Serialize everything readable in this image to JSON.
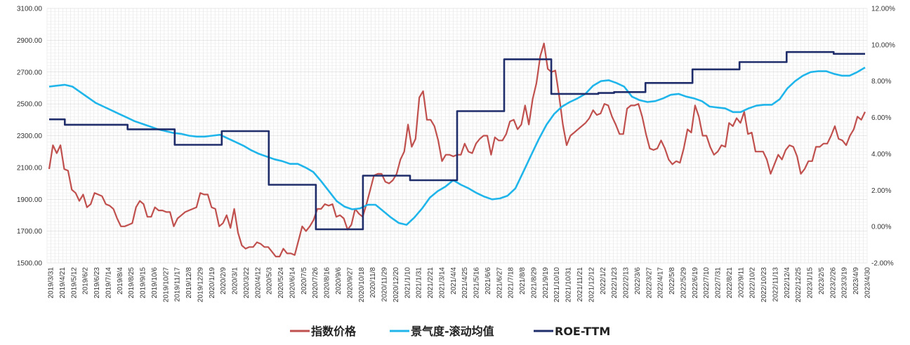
{
  "chart_data": {
    "type": "line",
    "title": "",
    "grid": true,
    "legend_position": "bottom-center",
    "y_left": {
      "ticks": [
        "3100.00",
        "2900.00",
        "2700.00",
        "2500.00",
        "2300.00",
        "2100.00",
        "1900.00",
        "1700.00",
        "1500.00"
      ],
      "range": [
        1500,
        3100
      ]
    },
    "y_right": {
      "ticks": [
        "12.00%",
        "10.00%",
        "8.00%",
        "6.00%",
        "4.00%",
        "2.00%",
        "0.00%",
        "-2.00%"
      ],
      "range": [
        -2,
        12
      ]
    },
    "x_ticks": [
      "2019/3/31",
      "2019/4/21",
      "2019/5/12",
      "2019/6/2",
      "2019/6/23",
      "2019/7/14",
      "2019/8/4",
      "2019/8/25",
      "2019/9/15",
      "2019/10/6",
      "2019/10/27",
      "2019/11/17",
      "2019/12/8",
      "2019/12/29",
      "2020/1/19",
      "2020/2/9",
      "2020/3/1",
      "2020/3/22",
      "2020/4/12",
      "2020/5/3",
      "2020/5/24",
      "2020/6/14",
      "2020/7/5",
      "2020/7/26",
      "2020/8/16",
      "2020/9/6",
      "2020/9/27",
      "2020/10/18",
      "2020/11/8",
      "2020/11/29",
      "2020/12/20",
      "2021/1/10",
      "2021/1/31",
      "2021/2/21",
      "2021/3/14",
      "2021/4/4",
      "2021/4/25",
      "2021/5/16",
      "2021/6/6",
      "2021/6/27",
      "2021/7/18",
      "2021/8/8",
      "2021/8/29",
      "2021/9/19",
      "2021/10/10",
      "2021/10/31",
      "2021/11/21",
      "2021/12/12",
      "2022/1/2",
      "2022/1/23",
      "2022/2/13",
      "2022/3/6",
      "2022/3/27",
      "2022/4/17",
      "2022/5/8",
      "2022/5/29",
      "2022/6/19",
      "2022/7/10",
      "2022/7/31",
      "2022/8/21",
      "2022/9/11",
      "2022/10/2",
      "2022/10/23",
      "2022/11/13",
      "2022/12/4",
      "2022/12/25",
      "2023/1/15",
      "2023/2/5",
      "2023/2/26",
      "2023/3/19",
      "2023/4/9",
      "2023/4/30"
    ],
    "series": [
      {
        "name": "指数价格",
        "axis": "left",
        "color": "#c0504d",
        "values": [
          2090,
          2240,
          2190,
          2240,
          2090,
          2080,
          1960,
          1940,
          1890,
          1930,
          1850,
          1870,
          1940,
          1930,
          1920,
          1870,
          1860,
          1840,
          1780,
          1730,
          1730,
          1740,
          1750,
          1850,
          1890,
          1870,
          1790,
          1790,
          1850,
          1830,
          1830,
          1820,
          1820,
          1730,
          1780,
          1800,
          1820,
          1830,
          1840,
          1850,
          1940,
          1930,
          1930,
          1850,
          1840,
          1730,
          1750,
          1800,
          1720,
          1840,
          1690,
          1610,
          1590,
          1600,
          1600,
          1630,
          1620,
          1600,
          1600,
          1570,
          1540,
          1540,
          1590,
          1560,
          1560,
          1550,
          1640,
          1730,
          1700,
          1730,
          1770,
          1840,
          1840,
          1870,
          1860,
          1870,
          1790,
          1800,
          1780,
          1710,
          1740,
          1840,
          1810,
          1790,
          1870,
          1960,
          2050,
          2060,
          2060,
          2010,
          2000,
          2020,
          2060,
          2150,
          2200,
          2370,
          2230,
          2280,
          2540,
          2580,
          2400,
          2400,
          2360,
          2270,
          2140,
          2180,
          2180,
          2170,
          2180,
          2180,
          2250,
          2200,
          2190,
          2250,
          2280,
          2300,
          2300,
          2180,
          2290,
          2270,
          2270,
          2310,
          2390,
          2400,
          2340,
          2370,
          2490,
          2370,
          2530,
          2630,
          2800,
          2880,
          2720,
          2700,
          2710,
          2550,
          2370,
          2240,
          2300,
          2320,
          2340,
          2360,
          2380,
          2410,
          2460,
          2430,
          2440,
          2500,
          2490,
          2420,
          2370,
          2310,
          2310,
          2470,
          2490,
          2490,
          2500,
          2420,
          2310,
          2220,
          2210,
          2220,
          2270,
          2220,
          2150,
          2120,
          2140,
          2130,
          2220,
          2340,
          2320,
          2490,
          2420,
          2300,
          2300,
          2230,
          2180,
          2200,
          2240,
          2230,
          2380,
          2360,
          2410,
          2380,
          2450,
          2310,
          2320,
          2200,
          2200,
          2200,
          2150,
          2060,
          2120,
          2180,
          2150,
          2210,
          2240,
          2230,
          2170,
          2060,
          2090,
          2140,
          2140,
          2230,
          2230,
          2250,
          2250,
          2300,
          2360,
          2280,
          2270,
          2240,
          2300,
          2340,
          2420,
          2400,
          2450
        ]
      },
      {
        "name": "景气度-滚动均值",
        "axis": "right",
        "color": "#1fb5ea",
        "values": [
          7.7,
          7.75,
          7.8,
          7.7,
          7.4,
          7.1,
          6.8,
          6.6,
          6.4,
          6.2,
          6.0,
          5.8,
          5.65,
          5.5,
          5.35,
          5.25,
          5.15,
          5.1,
          5.0,
          4.95,
          4.95,
          5.0,
          5.05,
          4.85,
          4.65,
          4.45,
          4.2,
          4.0,
          3.85,
          3.7,
          3.6,
          3.45,
          3.45,
          3.25,
          3.0,
          2.5,
          1.95,
          1.4,
          1.1,
          0.95,
          1.0,
          1.2,
          1.2,
          0.85,
          0.5,
          0.2,
          0.1,
          0.5,
          1.0,
          1.6,
          1.95,
          2.2,
          2.55,
          2.3,
          2.1,
          1.85,
          1.65,
          1.5,
          1.55,
          1.7,
          2.1,
          3.0,
          3.9,
          4.8,
          5.6,
          6.2,
          6.6,
          6.85,
          7.05,
          7.3,
          7.75,
          8.0,
          8.05,
          7.9,
          7.7,
          7.15,
          6.95,
          6.85,
          6.9,
          7.05,
          7.25,
          7.3,
          7.15,
          7.05,
          6.9,
          6.6,
          6.55,
          6.5,
          6.3,
          6.3,
          6.5,
          6.65,
          6.7,
          6.7,
          7.0,
          7.6,
          8.0,
          8.3,
          8.5,
          8.55,
          8.55,
          8.4,
          8.3,
          8.3,
          8.5,
          8.75
        ]
      },
      {
        "name": "ROE-TTM",
        "axis": "right",
        "color": "#1f2d6b",
        "values": [
          5.9,
          5.6,
          5.6,
          5.6,
          5.6,
          5.35,
          5.35,
          5.35,
          4.5,
          4.5,
          4.5,
          5.25,
          5.25,
          5.25,
          2.3,
          2.3,
          2.3,
          -0.15,
          -0.15,
          -0.15,
          2.8,
          2.8,
          2.8,
          2.55,
          2.55,
          2.55,
          6.35,
          6.35,
          6.35,
          9.2,
          9.2,
          9.2,
          7.3,
          7.3,
          7.3,
          7.35,
          7.4,
          7.4,
          7.9,
          7.9,
          7.9,
          8.65,
          8.65,
          8.65,
          9.05,
          9.05,
          9.05,
          9.6,
          9.6,
          9.6,
          9.5,
          9.5
        ]
      }
    ]
  }
}
